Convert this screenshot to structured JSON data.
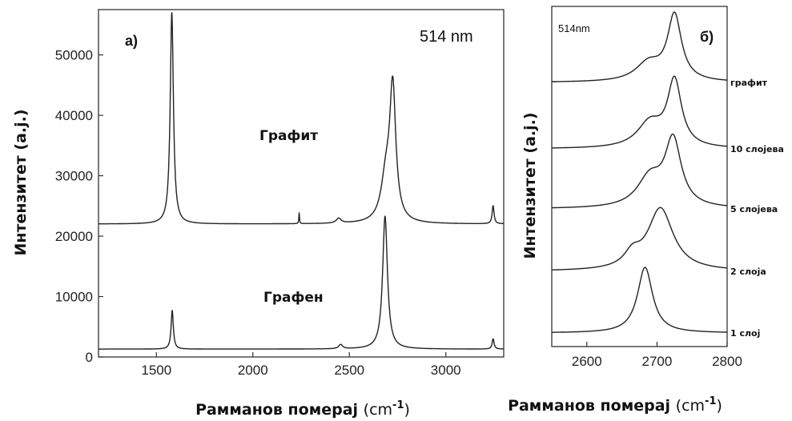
{
  "chart_data": [
    {
      "panel": "a)",
      "type": "line",
      "annotation": "514 nm",
      "xlabel": "Рамманов померај",
      "xlabel_unit": "(cm",
      "xlabel_sup": "-1",
      "xlabel_close": ")",
      "ylabel": "Интензитет",
      "ylabel_unit": "(a.j.)",
      "xlim": [
        1200,
        3300
      ],
      "ylim": [
        0,
        57500
      ],
      "xticks": [
        "1500",
        "2000",
        "2500",
        "3000"
      ],
      "yticks": [
        "0",
        "10000",
        "20000",
        "30000",
        "40000",
        "50000"
      ],
      "xtick_values": [
        1500,
        2000,
        2500,
        3000
      ],
      "ytick_values": [
        0,
        10000,
        20000,
        30000,
        40000,
        50000
      ],
      "series": [
        {
          "name": "Графит",
          "baseline": 22000,
          "peaks": [
            {
              "x": 1580,
              "height": 35000,
              "width": 10
            },
            {
              "x": 2240,
              "height": 1800,
              "width": 2
            },
            {
              "x": 2445,
              "height": 800,
              "width": 15
            },
            {
              "x": 2690,
              "height": 7000,
              "width": 30
            },
            {
              "x": 2725,
              "height": 21500,
              "width": 19
            },
            {
              "x": 3245,
              "height": 3000,
              "width": 6
            }
          ]
        },
        {
          "name": "Графен",
          "baseline": 1300,
          "peaks": [
            {
              "x": 1582,
              "height": 6400,
              "width": 7
            },
            {
              "x": 2455,
              "height": 700,
              "width": 12
            },
            {
              "x": 2685,
              "height": 22000,
              "width": 15
            },
            {
              "x": 3245,
              "height": 1700,
              "width": 6
            }
          ]
        }
      ]
    },
    {
      "panel": "б)",
      "type": "line",
      "annotation": "514nm",
      "xlabel": "Рамманов померај",
      "xlabel_unit": "(cm",
      "xlabel_sup": "-1",
      "xlabel_close": ")",
      "ylabel": "Интензитет",
      "ylabel_unit": "(a.j.)",
      "xlim": [
        2550,
        2800
      ],
      "xticks": [
        "2600",
        "2700",
        "2800"
      ],
      "xtick_values": [
        2600,
        2700,
        2800
      ],
      "series": [
        {
          "name": "графит",
          "offset": 4,
          "peaks": [
            {
              "x": 2725,
              "height": 1.0,
              "width": 12
            },
            {
              "x": 2688,
              "height": 0.28,
              "width": 22
            }
          ]
        },
        {
          "name": "10 слојева",
          "offset": 3,
          "peaks": [
            {
              "x": 2725,
              "height": 1.0,
              "width": 12
            },
            {
              "x": 2690,
              "height": 0.38,
              "width": 22
            }
          ]
        },
        {
          "name": "5 слојева",
          "offset": 2,
          "peaks": [
            {
              "x": 2723,
              "height": 1.0,
              "width": 14
            },
            {
              "x": 2690,
              "height": 0.45,
              "width": 22
            }
          ]
        },
        {
          "name": "2 слоја",
          "offset": 1,
          "peaks": [
            {
              "x": 2705,
              "height": 0.95,
              "width": 22
            },
            {
              "x": 2665,
              "height": 0.2,
              "width": 14
            }
          ]
        },
        {
          "name": "1 слој",
          "offset": 0,
          "peaks": [
            {
              "x": 2683,
              "height": 1.0,
              "width": 13
            }
          ]
        }
      ]
    }
  ]
}
